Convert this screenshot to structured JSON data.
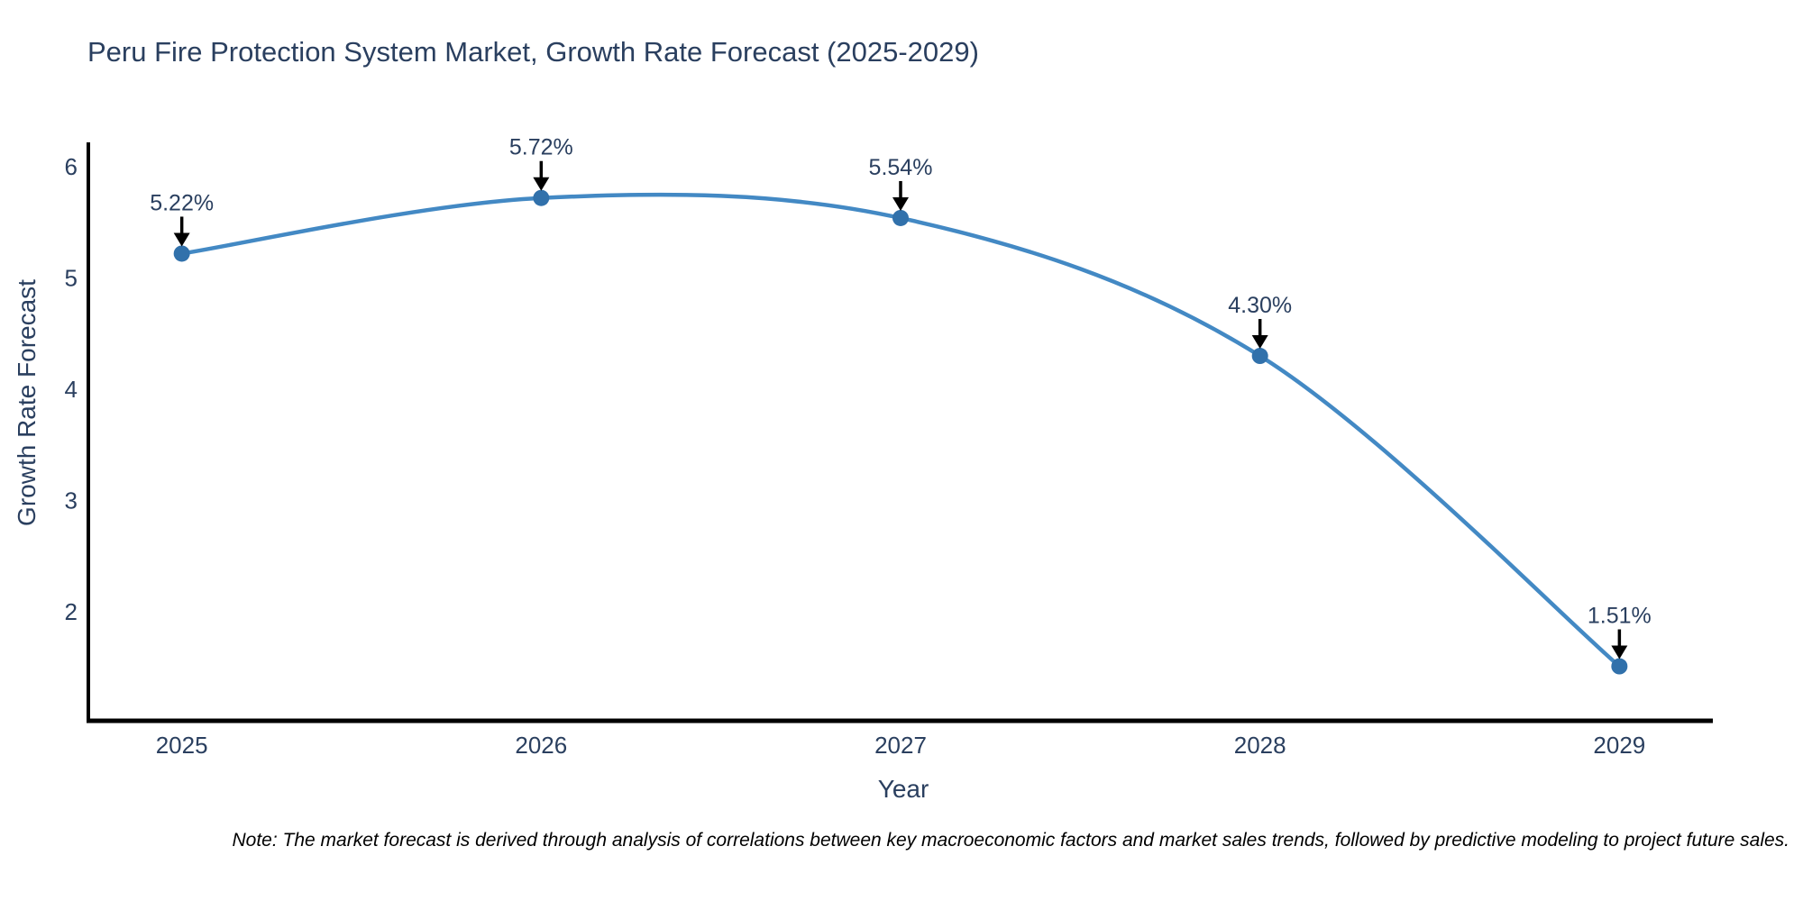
{
  "title": "Peru Fire Protection System Market, Growth Rate Forecast (2025-2029)",
  "note": "Note: The market forecast is derived through analysis of correlations between key macroeconomic factors and market sales trends, followed by predictive modeling to project future sales.",
  "colors": {
    "background": "#ffffff",
    "title_text": "#2a3f5f",
    "axis_line": "#000000",
    "tick_text": "#2a3f5f",
    "series_line": "#4389c4",
    "marker_fill": "#3171ab",
    "annotation_text": "#2a3f5f",
    "annotation_arrow": "#000000",
    "note_text": "#000000"
  },
  "chart_data": {
    "type": "line",
    "line_shape": "spline",
    "markers": true,
    "title": "Peru Fire Protection System Market, Growth Rate Forecast (2025-2029)",
    "xlabel": "Year",
    "ylabel": "Growth Rate Forecast",
    "x": [
      2025,
      2026,
      2027,
      2028,
      2029
    ],
    "series": [
      {
        "name": "Growth Rate Forecast",
        "values": [
          5.22,
          5.72,
          5.54,
          4.3,
          1.51
        ]
      }
    ],
    "point_labels": [
      "5.22%",
      "5.72%",
      "5.54%",
      "4.30%",
      "1.51%"
    ],
    "xticks": [
      "2025",
      "2026",
      "2027",
      "2028",
      "2029"
    ],
    "yticks": [
      2,
      3,
      4,
      5,
      6
    ],
    "xlim": [
      2024.74,
      2029.26
    ],
    "ylim": [
      1.02,
      6.22
    ],
    "grid": false,
    "legend": "none"
  }
}
